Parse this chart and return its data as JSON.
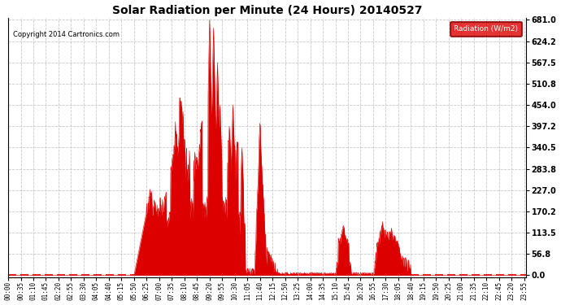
{
  "title": "Solar Radiation per Minute (24 Hours) 20140527",
  "copyright": "Copyright 2014 Cartronics.com",
  "legend_label": "Radiation (W/m2)",
  "fill_color": "#DD0000",
  "line_color": "#DD0000",
  "dashed_line_color": "#DD0000",
  "background_color": "#ffffff",
  "grid_color": "#bbbbbb",
  "yticks": [
    0.0,
    56.8,
    113.5,
    170.2,
    227.0,
    283.8,
    340.5,
    397.2,
    454.0,
    510.8,
    567.5,
    624.2,
    681.0
  ],
  "ymax": 681.0,
  "ymin": 0.0,
  "n_minutes": 1440,
  "tick_step": 35
}
